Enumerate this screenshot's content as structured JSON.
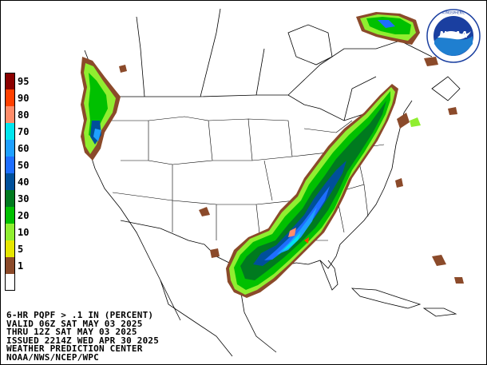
{
  "legend": {
    "entries": [
      {
        "label": "95",
        "color": "#8b0000"
      },
      {
        "label": "90",
        "color": "#ff4000"
      },
      {
        "label": "80",
        "color": "#ff8c69"
      },
      {
        "label": "70",
        "color": "#00e5ee"
      },
      {
        "label": "60",
        "color": "#1ea0ff"
      },
      {
        "label": "50",
        "color": "#1e6eff"
      },
      {
        "label": "40",
        "color": "#00509a"
      },
      {
        "label": "30",
        "color": "#007a1f"
      },
      {
        "label": "20",
        "color": "#00c000"
      },
      {
        "label": "10",
        "color": "#90ee30"
      },
      {
        "label": "5",
        "color": "#e6e600"
      },
      {
        "label": "1",
        "color": "#8b4a2a"
      },
      {
        "label": "",
        "color": "#ffffff"
      }
    ]
  },
  "footer": {
    "line1": "6-HR PQPF > .1 IN (PERCENT)",
    "line2": "VALID 06Z SAT MAY 03 2025",
    "line3": "THRU 12Z SAT MAY 03 2025",
    "line4": "ISSUED 2214Z WED APR 30 2025",
    "line5": "WEATHER PREDICTION CENTER",
    "line6": "NOAA/NWS/NCEP/WPC"
  },
  "logo": {
    "text": "NOAA",
    "colors": {
      "ring": "#ffffff",
      "sky": "#1a3fa0",
      "sea": "#1f7fd0",
      "bird": "#ffffff"
    }
  },
  "map": {
    "colors": {
      "background": "#ffffff",
      "outline": "#000000",
      "brown": "#8b4a2a",
      "light_green": "#90ee30",
      "green": "#00c000",
      "dark_green": "#007a1f",
      "navy": "#00509a",
      "blue": "#1e6eff",
      "light_blue": "#1ea0ff",
      "cyan": "#00e5ee",
      "salmon": "#ff8c69",
      "red": "#ff4000"
    }
  }
}
